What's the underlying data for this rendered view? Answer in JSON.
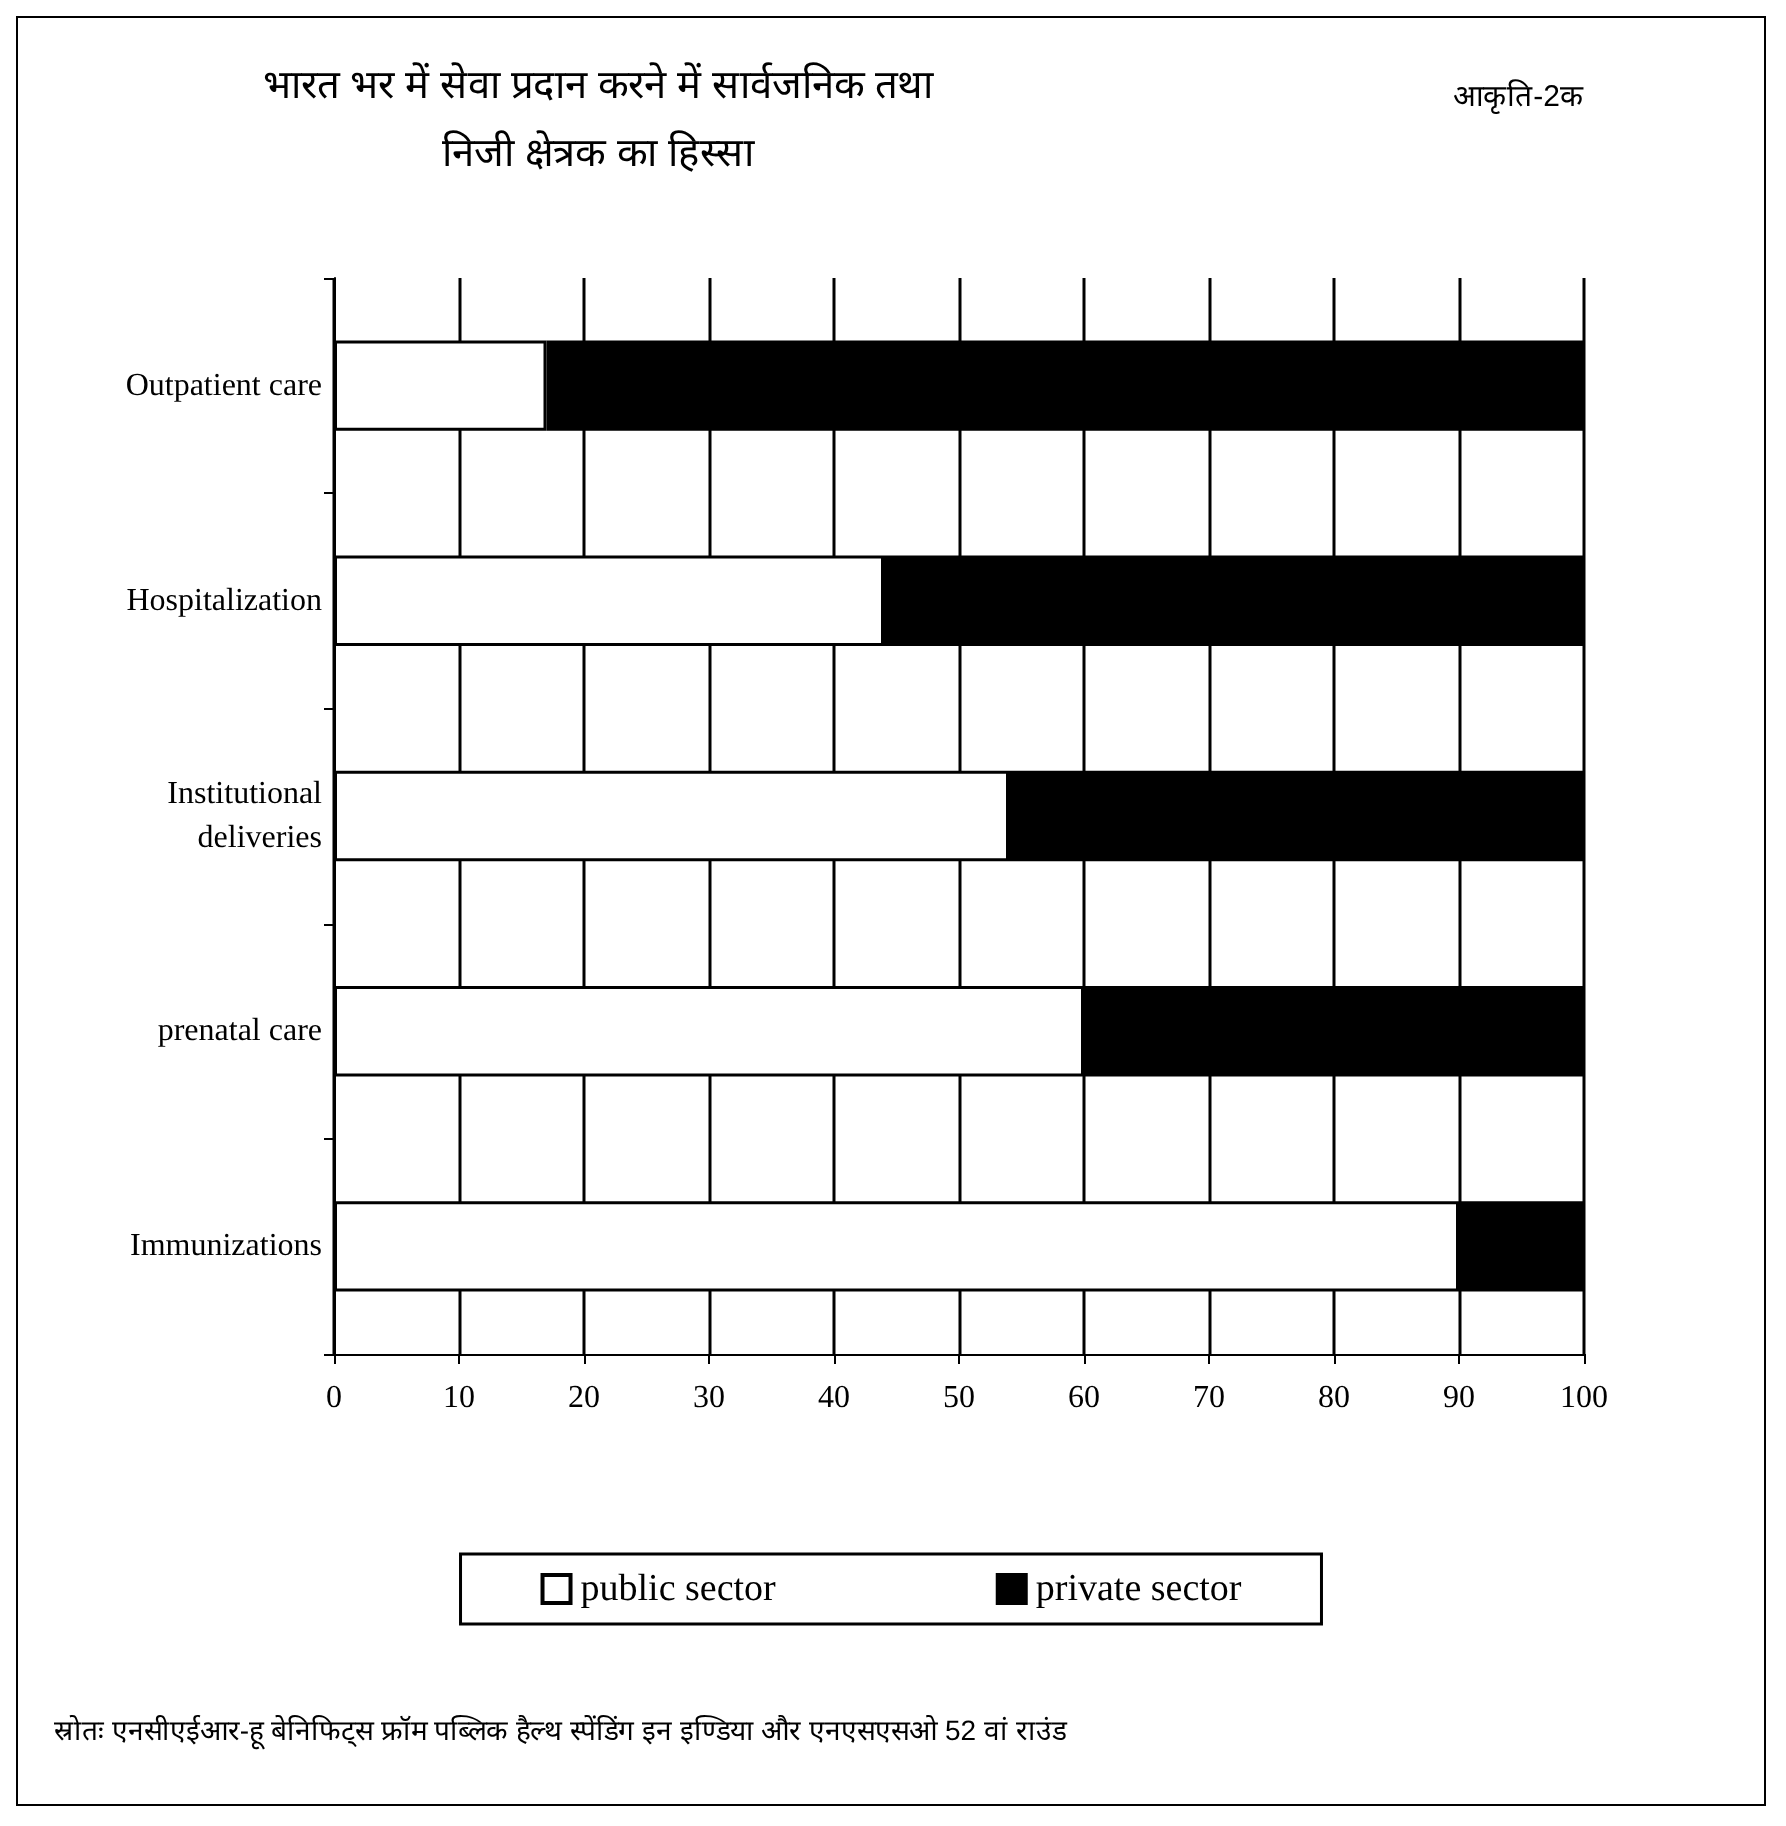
{
  "chart_data": {
    "type": "bar",
    "orientation": "horizontal",
    "stacked": true,
    "title": "भारत भर में सेवा प्रदान करने में सार्वजनिक तथा\nनिजी क्षेत्रक का हिस्सा",
    "annotations": [
      "आकृति-2क",
      "स्रोतः एनसीएईआर-हू बेनिफिट्स फ्रॉम पब्लिक हैल्थ स्पेंडिंग इन इण्डिया और एनएसएसओ 52 वां राउंड"
    ],
    "categories": [
      "Outpatient care",
      "Hospitalization",
      "Institutional\ndeliveries",
      "prenatal care",
      "Immunizations"
    ],
    "series": [
      {
        "name": "public sector",
        "color": "#ffffff",
        "values": [
          17,
          44,
          54,
          60,
          90
        ]
      },
      {
        "name": "private sector",
        "color": "#000000",
        "values": [
          83,
          56,
          46,
          40,
          10
        ]
      }
    ],
    "xlim": [
      0,
      100
    ],
    "xticks": [
      0,
      10,
      20,
      30,
      40,
      50,
      60,
      70,
      80,
      90,
      100
    ],
    "grid": "x",
    "legend": "bottom"
  }
}
